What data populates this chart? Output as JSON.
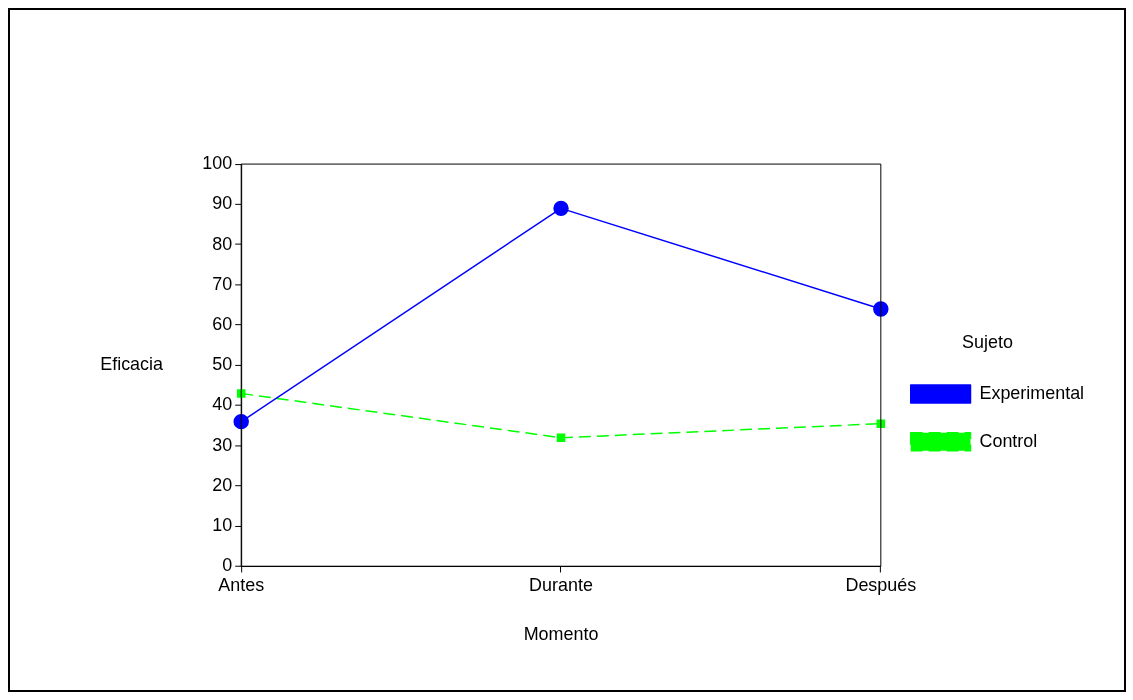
{
  "chart_data": {
    "type": "line",
    "xlabel": "Momento",
    "ylabel": "Eficacia",
    "legend_title": "Sujeto",
    "categories": [
      "Antes",
      "Durante",
      "Después"
    ],
    "series": [
      {
        "name": "Experimental",
        "color": "#0000ff",
        "values": [
          36,
          89,
          64
        ],
        "marker": "circle",
        "line_style": "solid"
      },
      {
        "name": "Control",
        "color": "#00ff00",
        "values": [
          43,
          32,
          35.5
        ],
        "marker": "square",
        "line_style": "dashed"
      }
    ],
    "ylim": [
      0,
      100
    ],
    "yticks": [
      0,
      10,
      20,
      30,
      40,
      50,
      60,
      70,
      80,
      90,
      100
    ],
    "grid": false,
    "legend": "right"
  }
}
